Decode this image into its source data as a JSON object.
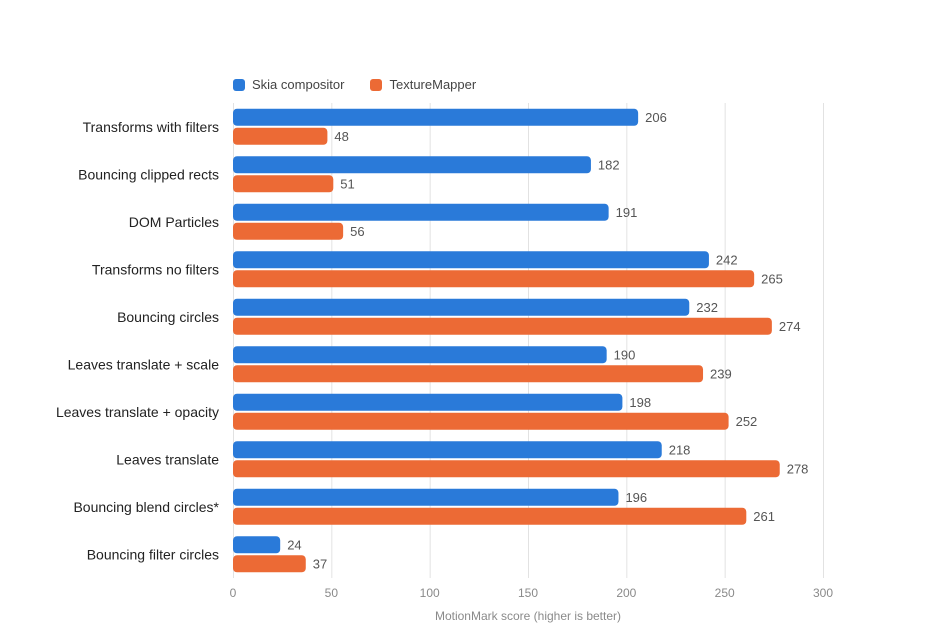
{
  "chart_data": {
    "type": "bar",
    "orientation": "horizontal",
    "categories": [
      "Transforms with filters",
      "Bouncing clipped rects",
      "DOM Particles",
      "Transforms no filters",
      "Bouncing circles",
      "Leaves translate + scale",
      "Leaves translate + opacity",
      "Leaves translate",
      "Bouncing blend circles*",
      "Bouncing filter circles"
    ],
    "series": [
      {
        "name": "Skia compositor",
        "color": "#2a7ad9",
        "values": [
          206,
          182,
          191,
          242,
          232,
          190,
          198,
          218,
          196,
          24
        ]
      },
      {
        "name": "TextureMapper",
        "color": "#ec6a35",
        "values": [
          48,
          51,
          56,
          265,
          274,
          239,
          252,
          278,
          261,
          37
        ]
      }
    ],
    "xlabel": "MotionMark score (higher is better)",
    "xlim": [
      0,
      300
    ],
    "xticks": [
      0,
      50,
      100,
      150,
      200,
      250,
      300
    ],
    "grid": true,
    "legend_position": "top-left"
  }
}
